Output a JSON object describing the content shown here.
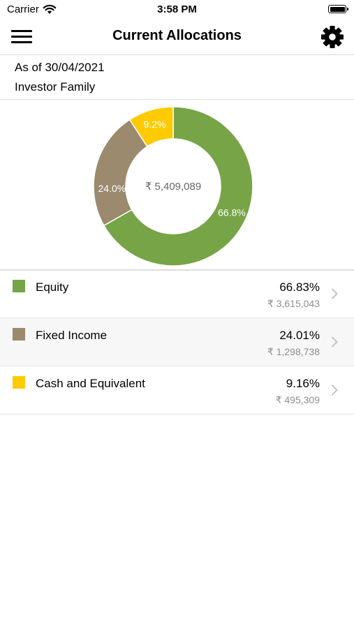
{
  "status_bar": {
    "carrier": "Carrier",
    "time": "3:58 PM"
  },
  "nav": {
    "title": "Current Allocations",
    "menu_icon": "hamburger-menu-icon",
    "settings_icon": "gear-icon"
  },
  "info": {
    "as_of": "As of 30/04/2021",
    "investor": "Investor Family"
  },
  "chart_data": {
    "type": "pie",
    "center_label": "₹ 5,409,089",
    "slices": [
      {
        "label": "Equity",
        "value": 66.8,
        "display": "66.8%",
        "color": "#77a446"
      },
      {
        "label": "Fixed Income",
        "value": 24.0,
        "display": "24.0%",
        "color": "#9b8a6e"
      },
      {
        "label": "Cash and Equivalent",
        "value": 9.2,
        "display": "9.2%",
        "color": "#fecb02"
      }
    ]
  },
  "allocations": [
    {
      "name": "Equity",
      "percent": "66.83%",
      "amount": "₹ 3,615,043",
      "color": "#77a446"
    },
    {
      "name": "Fixed Income",
      "percent": "24.01%",
      "amount": "₹ 1,298,738",
      "color": "#9b8a6e"
    },
    {
      "name": "Cash and Equivalent",
      "percent": "9.16%",
      "amount": "₹ 495,309",
      "color": "#fecb02"
    }
  ]
}
